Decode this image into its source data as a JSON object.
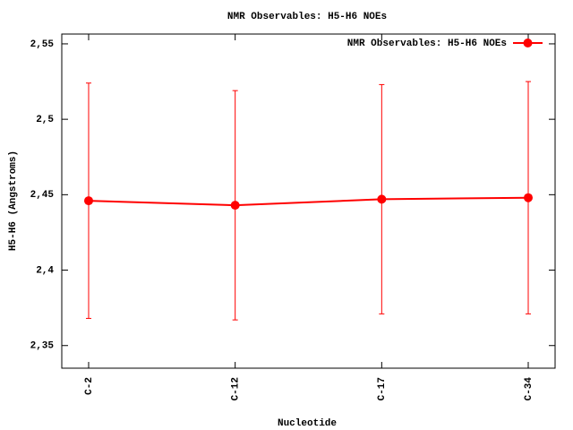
{
  "chart_data": {
    "type": "line",
    "title": "NMR Observables: H5-H6 NOEs",
    "x_label": "Nucleotide",
    "y_label": "H5-H6 (Angstroms)",
    "categories": [
      "C-2",
      "C-12",
      "C-17",
      "C-34"
    ],
    "series": [
      {
        "name": "NMR Observables: H5-H6 NOEs",
        "color": "#ff0000",
        "values": [
          2.446,
          2.443,
          2.447,
          2.448
        ],
        "errors": [
          0.078,
          0.076,
          0.076,
          0.077
        ]
      }
    ],
    "ylim": [
      2.335,
      2.5565
    ],
    "yticks": [
      {
        "value": 2.35,
        "label": "2,35"
      },
      {
        "value": 2.4,
        "label": "2,4"
      },
      {
        "value": 2.45,
        "label": "2,45"
      },
      {
        "value": 2.5,
        "label": "2,5"
      },
      {
        "value": 2.55,
        "label": "2,55"
      }
    ],
    "grid": false,
    "legend": "top-right"
  }
}
